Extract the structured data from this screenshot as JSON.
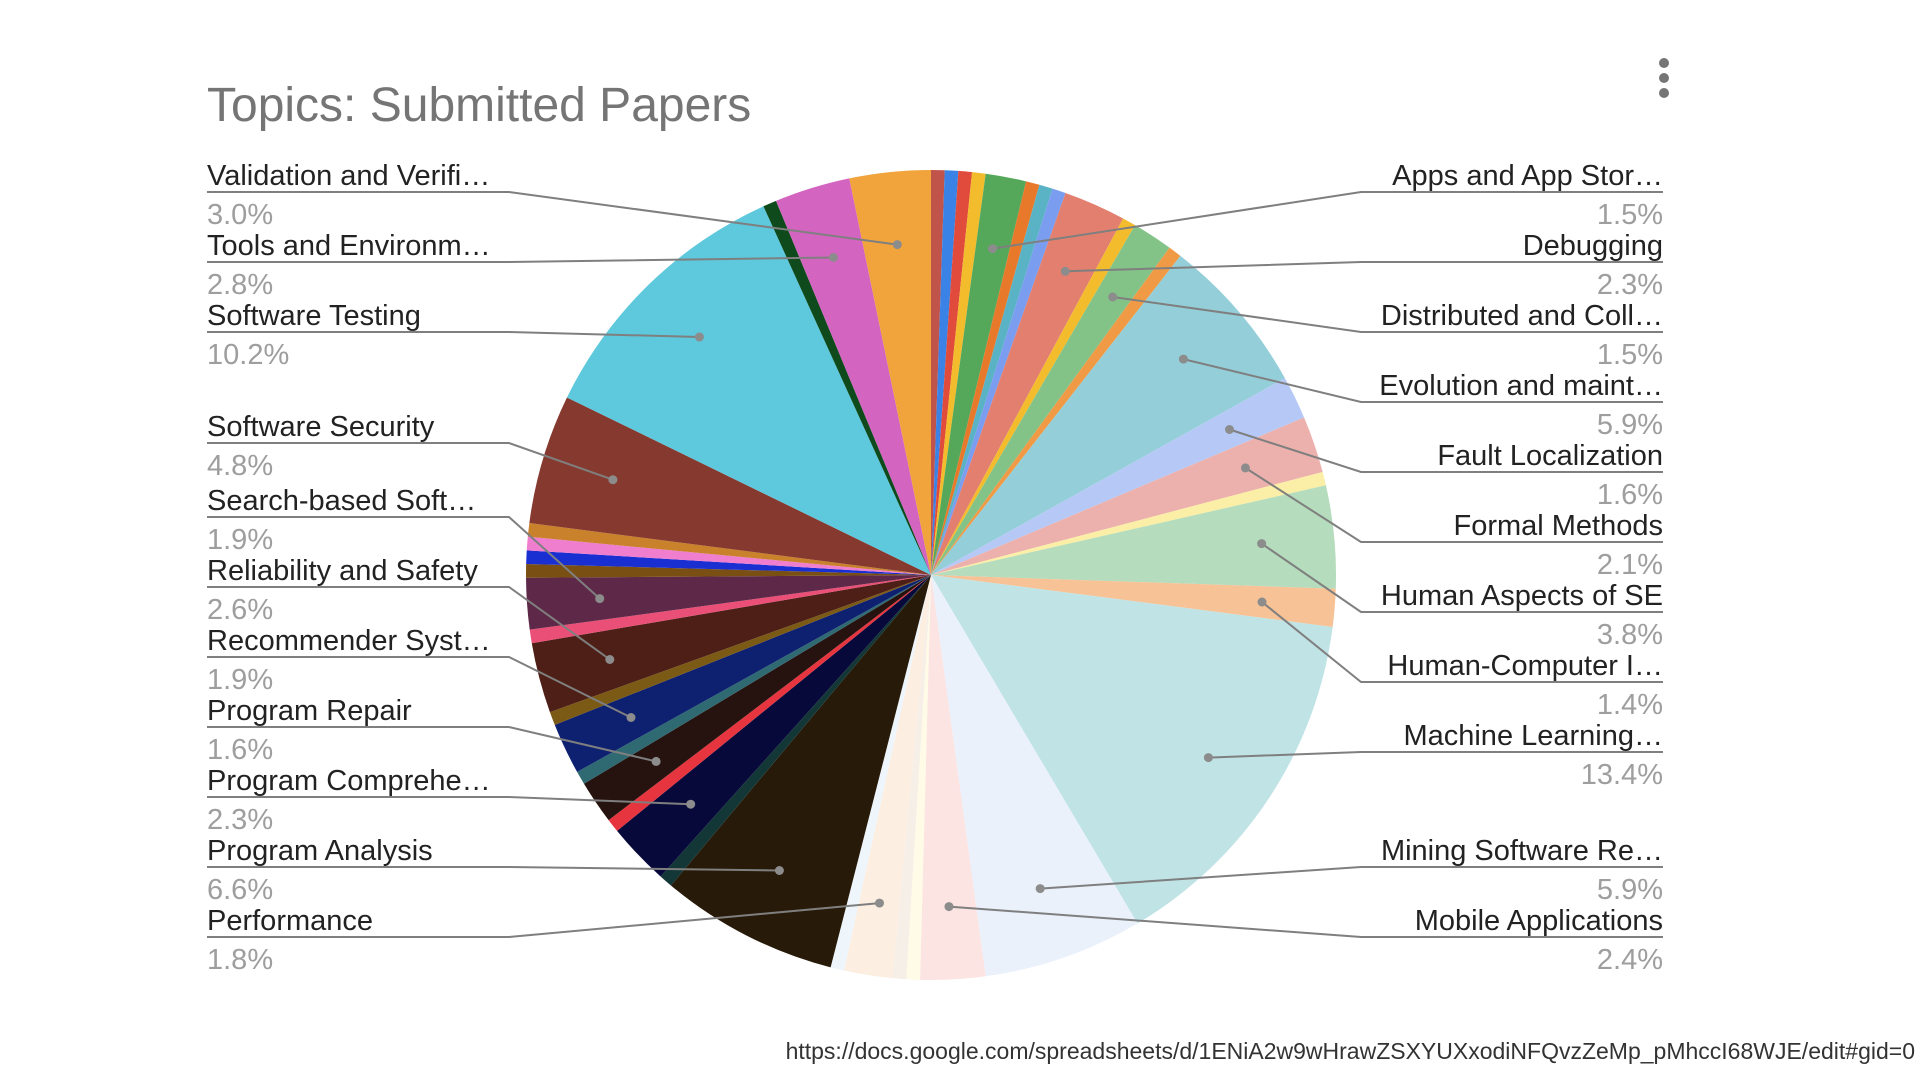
{
  "chart_data": {
    "type": "pie",
    "title": "Topics: Submitted Papers",
    "labeled_slices": [
      {
        "name": "Validation and Verifi…",
        "value": 3.0,
        "label": "3.0%",
        "color": "#f1a43c",
        "side": "left"
      },
      {
        "name": "Tools and Environm…",
        "value": 2.8,
        "label": "2.8%",
        "color": "#d364c0",
        "side": "left"
      },
      {
        "name": "Software Testing",
        "value": 10.2,
        "label": "10.2%",
        "color": "#5ec8dc",
        "side": "left"
      },
      {
        "name": "Software Security",
        "value": 4.8,
        "label": "4.8%",
        "color": "#86392f",
        "side": "left"
      },
      {
        "name": "Search-based Soft…",
        "value": 1.9,
        "label": "1.9%",
        "color": "#5e2948",
        "side": "left"
      },
      {
        "name": "Reliability and Safety",
        "value": 2.6,
        "label": "2.6%",
        "color": "#4e1f16",
        "side": "left"
      },
      {
        "name": "Recommender Syst…",
        "value": 1.9,
        "label": "1.9%",
        "color": "#0e2070",
        "side": "left"
      },
      {
        "name": "Program Repair",
        "value": 1.6,
        "label": "1.6%",
        "color": "#26130f",
        "side": "left"
      },
      {
        "name": "Program Comprehe…",
        "value": 2.3,
        "label": "2.3%",
        "color": "#07093a",
        "side": "left"
      },
      {
        "name": "Program Analysis",
        "value": 6.6,
        "label": "6.6%",
        "color": "#281a08",
        "side": "left"
      },
      {
        "name": "Performance",
        "value": 1.8,
        "label": "1.8%",
        "color": "#fdeee2",
        "side": "left"
      },
      {
        "name": "Apps and App Stor…",
        "value": 1.5,
        "label": "1.5%",
        "color": "#55a85a",
        "side": "right"
      },
      {
        "name": "Debugging",
        "value": 2.3,
        "label": "2.3%",
        "color": "#e37f6f",
        "side": "right"
      },
      {
        "name": "Distributed and Coll…",
        "value": 1.5,
        "label": "1.5%",
        "color": "#83c387",
        "side": "right"
      },
      {
        "name": "Evolution and maint…",
        "value": 5.9,
        "label": "5.9%",
        "color": "#94ced8",
        "side": "right"
      },
      {
        "name": "Fault Localization",
        "value": 1.6,
        "label": "1.6%",
        "color": "#b6c9f6",
        "side": "right"
      },
      {
        "name": "Formal Methods",
        "value": 2.1,
        "label": "2.1%",
        "color": "#edb1ad",
        "side": "right"
      },
      {
        "name": "Human Aspects of SE",
        "value": 3.8,
        "label": "3.8%",
        "color": "#b5dcbc",
        "side": "right"
      },
      {
        "name": "Human-Computer I…",
        "value": 1.4,
        "label": "1.4%",
        "color": "#f7c295",
        "side": "right"
      },
      {
        "name": "Machine Learning…",
        "value": 13.4,
        "label": "13.4%",
        "color": "#c0e3e6",
        "side": "right"
      },
      {
        "name": "Mining Software Re…",
        "value": 5.9,
        "label": "5.9%",
        "color": "#eaf1fb",
        "side": "right"
      },
      {
        "name": "Mobile Applications",
        "value": 2.4,
        "label": "2.4%",
        "color": "#fbe4e2",
        "side": "right"
      }
    ],
    "unlabeled_slice_colors": [
      "#c0534a",
      "#3b82e6",
      "#e14b3b",
      "#f3bc2d",
      "#e8792a",
      "#5ab3c4",
      "#7a9df0",
      "#f6d466",
      "#f09a46",
      "#fbeea6",
      "#f5efe8",
      "#fffbe6",
      "#eef6fb",
      "#133636",
      "#e7353f",
      "#2f6a73",
      "#7b5a15",
      "#ea5077",
      "#7a4f13",
      "#1a2fd2",
      "#ef7ecf",
      "#c9812c",
      "#0e4a1c"
    ],
    "legend": "none"
  },
  "menu_icon": "more-vert-icon",
  "source_url": "https://docs.google.com/spreadsheets/d/1ENiA2w9wHrawZSXYUXxodiNFQvzZeMp_pMhccI68WJE/edit#gid=0"
}
